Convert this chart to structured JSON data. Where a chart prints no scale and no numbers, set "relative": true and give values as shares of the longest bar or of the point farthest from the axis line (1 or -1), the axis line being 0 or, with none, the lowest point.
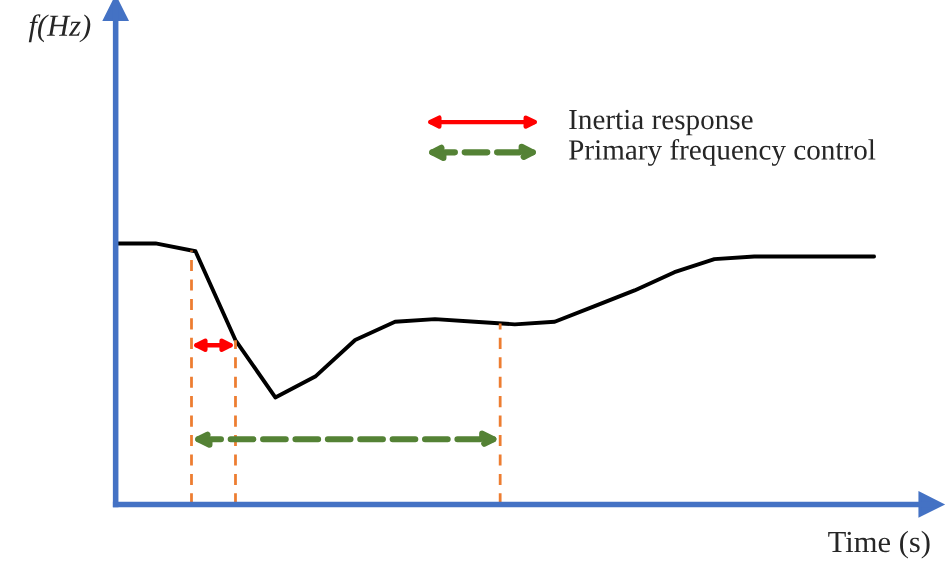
{
  "chart_data": {
    "type": "line",
    "relative": true,
    "xlabel": "Time (s)",
    "marker": "none",
    "categories": [
      null,
      null,
      null,
      null,
      null,
      null,
      null,
      null,
      null,
      null,
      null,
      null,
      null,
      null,
      null,
      null,
      null,
      null,
      null,
      null
    ],
    "series": [
      {
        "color": "#000000",
        "values": [
          1.0,
          1.0,
          0.97,
          0.63,
          0.41,
          0.49,
          0.63,
          0.7,
          0.71,
          0.7,
          0.69,
          0.7,
          0.76,
          0.82,
          0.89,
          0.94,
          0.95,
          0.95,
          0.95,
          0.95
        ]
      }
    ],
    "annotations": [
      "f(Hz)",
      "Inertia response",
      "Primary frequency control"
    ]
  }
}
